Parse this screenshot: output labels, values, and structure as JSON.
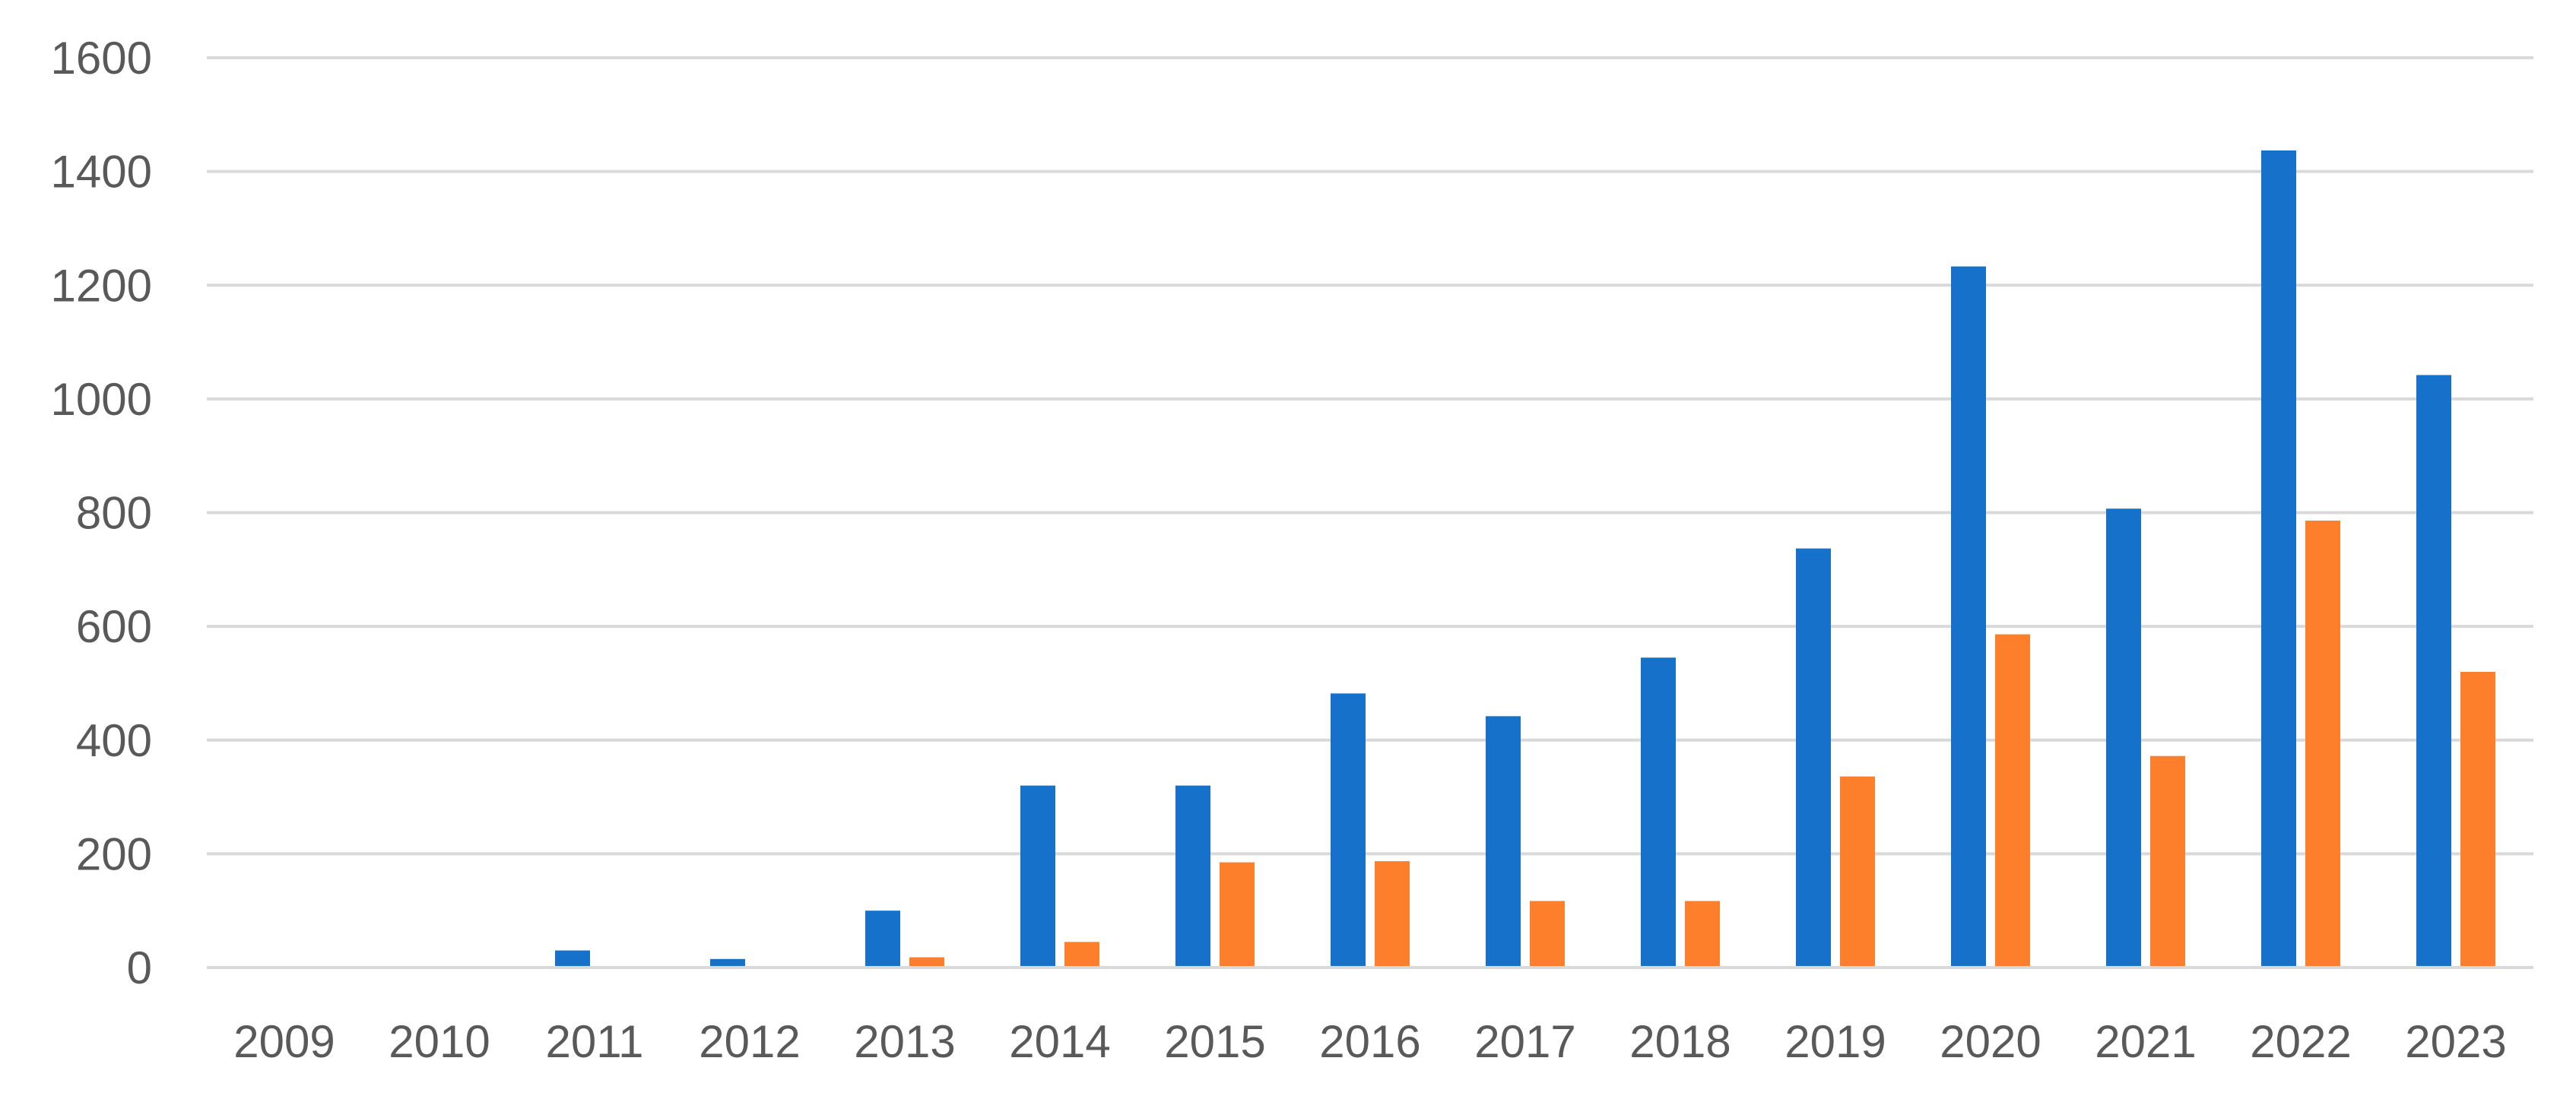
{
  "chart_data": {
    "type": "bar",
    "categories": [
      "2009",
      "2010",
      "2011",
      "2012",
      "2013",
      "2014",
      "2015",
      "2016",
      "2017",
      "2018",
      "2019",
      "2020",
      "2021",
      "2022",
      "2023"
    ],
    "series": [
      {
        "color": "#1571c9",
        "values": [
          0,
          0,
          30,
          15,
          100,
          320,
          320,
          482,
          442,
          545,
          737,
          1233,
          807,
          1437,
          1042
        ]
      },
      {
        "color": "#fd7f2b",
        "values": [
          0,
          0,
          0,
          0,
          18,
          45,
          185,
          187,
          117,
          117,
          336,
          586,
          372,
          786,
          520
        ]
      }
    ],
    "ylim": [
      0,
      1600
    ],
    "yticks": [
      "0",
      "200",
      "400",
      "600",
      "800",
      "1000",
      "1200",
      "1400",
      "1600"
    ],
    "title": "",
    "xlabel": "",
    "ylabel": "",
    "grid": true,
    "legend": "none"
  }
}
